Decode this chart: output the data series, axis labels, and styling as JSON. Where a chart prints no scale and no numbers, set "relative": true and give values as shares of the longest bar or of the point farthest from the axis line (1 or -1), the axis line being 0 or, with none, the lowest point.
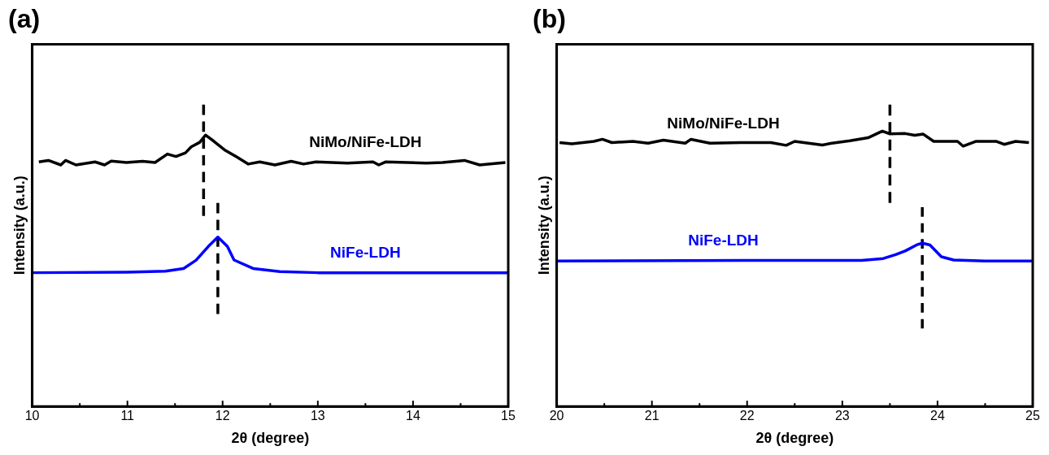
{
  "chart_data": [
    {
      "type": "line",
      "title": "(a)",
      "xlabel": "2θ (degree)",
      "ylabel": "Intensity (a.u.)",
      "relative": true,
      "xlim": [
        10,
        15
      ],
      "xticks": [
        10,
        {
          "value": 10.5,
          "label": null
        },
        11,
        {
          "value": 11.5,
          "label": null
        },
        12,
        {
          "value": 12.5,
          "label": null
        },
        13,
        {
          "value": 13.5,
          "label": null
        },
        14,
        {
          "value": 14.5,
          "label": null
        },
        15
      ],
      "grid": false,
      "legend": false,
      "marker": "none",
      "series": [
        {
          "name": "NiMo/NiFe-LDH",
          "color": "#000000",
          "x": [
            10.07,
            10.17,
            10.3,
            10.35,
            10.46,
            10.66,
            10.76,
            10.83,
            10.99,
            11.16,
            11.29,
            11.42,
            11.51,
            11.61,
            11.67,
            11.76,
            11.82,
            11.91,
            12.02,
            12.15,
            12.27,
            12.39,
            12.55,
            12.72,
            12.85,
            12.98,
            13.31,
            13.58,
            13.64,
            13.71,
            14.14,
            14.31,
            14.54,
            14.7,
            14.97
          ],
          "values": [
            0.81,
            0.815,
            0.8,
            0.815,
            0.8,
            0.81,
            0.8,
            0.813,
            0.808,
            0.812,
            0.808,
            0.836,
            0.828,
            0.84,
            0.86,
            0.875,
            0.899,
            0.878,
            0.85,
            0.826,
            0.803,
            0.81,
            0.8,
            0.812,
            0.803,
            0.81,
            0.806,
            0.81,
            0.8,
            0.81,
            0.806,
            0.808,
            0.815,
            0.8,
            0.808
          ]
        },
        {
          "name": "NiFe-LDH",
          "color": "#0000ff",
          "x": [
            10,
            11,
            11.4,
            11.59,
            11.72,
            11.85,
            11.95,
            12.05,
            12.12,
            12.32,
            12.6,
            13,
            15
          ],
          "values": [
            0.443,
            0.445,
            0.448,
            0.457,
            0.484,
            0.53,
            0.561,
            0.53,
            0.485,
            0.457,
            0.447,
            0.443,
            0.443
          ]
        },
        {
          "color": "#000000",
          "line_style": "dashed",
          "x": [
            11.8,
            11.8
          ],
          "values": [
            1,
            0.631
          ]
        },
        {
          "color": "#000000",
          "line_style": "dashed",
          "x": [
            11.95,
            11.95
          ],
          "values": [
            0.674,
            0.306
          ]
        }
      ]
    },
    {
      "type": "line",
      "title": "(b)",
      "xlabel": "2θ (degree)",
      "ylabel": "Intensity (a.u.)",
      "relative": true,
      "xlim": [
        20,
        25
      ],
      "xticks": [
        20,
        {
          "value": 20.5,
          "label": null
        },
        21,
        {
          "value": 21.5,
          "label": null
        },
        22,
        {
          "value": 22.5,
          "label": null
        },
        23,
        {
          "value": 23.5,
          "label": null
        },
        24,
        {
          "value": 24.5,
          "label": null
        },
        25
      ],
      "grid": false,
      "legend": false,
      "marker": "none",
      "series": [
        {
          "name": "NiMo/NiFe-LDH",
          "color": "#000000",
          "x": [
            20.03,
            20.16,
            20.39,
            20.48,
            20.58,
            20.8,
            20.96,
            21.12,
            21.35,
            21.41,
            21.61,
            21.93,
            22.25,
            22.41,
            22.5,
            22.79,
            22.89,
            23.08,
            23.27,
            23.42,
            23.5,
            23.66,
            23.76,
            23.85,
            23.96,
            24.21,
            24.27,
            24.4,
            24.62,
            24.7,
            24.82,
            24.96
          ],
          "values": [
            0.874,
            0.87,
            0.878,
            0.885,
            0.874,
            0.878,
            0.872,
            0.882,
            0.872,
            0.885,
            0.872,
            0.874,
            0.874,
            0.865,
            0.878,
            0.866,
            0.872,
            0.88,
            0.89,
            0.912,
            0.903,
            0.904,
            0.898,
            0.902,
            0.878,
            0.878,
            0.862,
            0.878,
            0.878,
            0.868,
            0.878,
            0.874
          ]
        },
        {
          "name": "NiFe-LDH",
          "color": "#0000ff",
          "x": [
            20,
            22,
            23.2,
            23.43,
            23.56,
            23.66,
            23.78,
            23.84,
            23.92,
            24.04,
            24.17,
            24.5,
            25
          ],
          "values": [
            0.482,
            0.484,
            0.484,
            0.49,
            0.503,
            0.515,
            0.535,
            0.541,
            0.535,
            0.496,
            0.485,
            0.482,
            0.482
          ]
        },
        {
          "color": "#000000",
          "line_style": "dashed",
          "x": [
            23.5,
            23.5
          ],
          "values": [
            1,
            0.674
          ]
        },
        {
          "color": "#000000",
          "line_style": "dashed",
          "x": [
            23.84,
            23.84
          ],
          "values": [
            0.66,
            0.258
          ]
        }
      ]
    }
  ]
}
